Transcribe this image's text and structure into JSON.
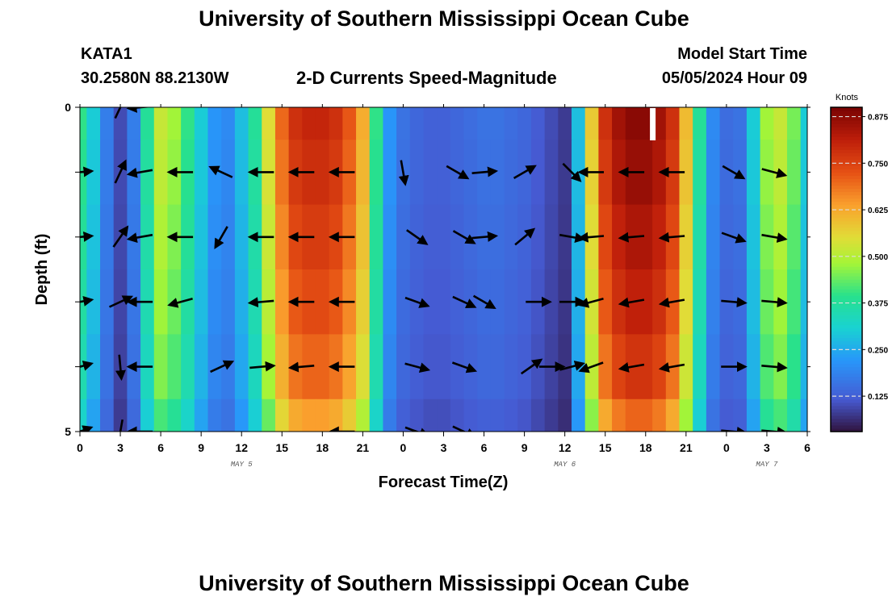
{
  "header": {
    "title_top": "University of Southern Mississippi Ocean Cube",
    "title_bottom": "University of Southern Mississippi Ocean Cube",
    "station": "KATA1",
    "coords": "30.2580N  88.2130W",
    "subtitle": "2-D Currents Speed-Magnitude",
    "model_start_label": "Model Start Time",
    "model_start_value": "05/05/2024 Hour 09"
  },
  "chart_data": {
    "type": "heatmap",
    "title": "2-D Currents Speed-Magnitude",
    "xlabel": "Forecast Time(Z)",
    "ylabel": "Depth (ft)",
    "x_ticks": [
      "0",
      "3",
      "6",
      "9",
      "12",
      "15",
      "18",
      "21",
      "0",
      "3",
      "6",
      "9",
      "12",
      "15",
      "18",
      "21",
      "0",
      "3",
      "6"
    ],
    "x_range_hours": [
      0,
      54
    ],
    "date_labels": [
      {
        "label": "MAY 5",
        "hour": 12
      },
      {
        "label": "MAY 6",
        "hour": 36
      },
      {
        "label": "MAY 7",
        "hour": 51
      }
    ],
    "y_ticks": [
      "0",
      "5"
    ],
    "y_range": [
      0,
      5
    ],
    "colorbar": {
      "unit": "Knots",
      "min": 0.03,
      "max": 0.9,
      "ticks": [
        "0.125",
        "0.250",
        "0.375",
        "0.500",
        "0.625",
        "0.750",
        "0.875"
      ],
      "tick_values": [
        0.125,
        0.25,
        0.375,
        0.5,
        0.625,
        0.75,
        0.875
      ]
    },
    "speed_profile_hours": [
      0,
      1,
      2,
      3,
      4,
      5,
      6,
      7,
      8,
      9,
      10,
      11,
      12,
      13,
      14,
      15,
      16,
      17,
      18,
      19,
      20,
      21,
      22,
      23,
      24,
      25,
      26,
      27,
      28,
      29,
      30,
      31,
      32,
      33,
      34,
      35,
      36,
      37,
      38,
      39,
      40,
      41,
      42,
      43,
      44,
      45,
      46,
      47,
      48,
      49,
      50,
      51,
      52,
      53,
      54
    ],
    "speed_profile_knots": [
      0.4,
      0.3,
      0.18,
      0.1,
      0.18,
      0.38,
      0.52,
      0.48,
      0.4,
      0.3,
      0.22,
      0.2,
      0.28,
      0.38,
      0.55,
      0.7,
      0.78,
      0.8,
      0.8,
      0.78,
      0.72,
      0.62,
      0.4,
      0.22,
      0.16,
      0.14,
      0.13,
      0.13,
      0.14,
      0.15,
      0.16,
      0.16,
      0.15,
      0.14,
      0.12,
      0.1,
      0.08,
      0.28,
      0.58,
      0.78,
      0.85,
      0.88,
      0.88,
      0.85,
      0.78,
      0.6,
      0.38,
      0.2,
      0.15,
      0.16,
      0.3,
      0.48,
      0.52,
      0.45,
      0.3
    ],
    "depth_rows_ft": [
      0,
      1,
      2,
      3,
      4,
      5
    ],
    "depth_speed_factor": [
      1.0,
      0.98,
      0.95,
      0.92,
      0.88,
      0.8
    ],
    "vectors": [
      {
        "hour": 0,
        "depth": 1,
        "dir": 5
      },
      {
        "hour": 0,
        "depth": 2,
        "dir": 5
      },
      {
        "hour": 0,
        "depth": 3,
        "dir": 10
      },
      {
        "hour": 0,
        "depth": 4,
        "dir": 15
      },
      {
        "hour": 0,
        "depth": 5,
        "dir": 20
      },
      {
        "hour": 3,
        "depth": 0,
        "dir": 65
      },
      {
        "hour": 3,
        "depth": 1,
        "dir": 65
      },
      {
        "hour": 3,
        "depth": 2,
        "dir": 55
      },
      {
        "hour": 3,
        "depth": 3,
        "dir": 25
      },
      {
        "hour": 3,
        "depth": 4,
        "dir": -85
      },
      {
        "hour": 3,
        "depth": 5,
        "dir": -100
      },
      {
        "hour": 4.5,
        "depth": 0,
        "dir": 185
      },
      {
        "hour": 4.5,
        "depth": 1,
        "dir": 190
      },
      {
        "hour": 4.5,
        "depth": 2,
        "dir": 190
      },
      {
        "hour": 4.5,
        "depth": 3,
        "dir": 180
      },
      {
        "hour": 4.5,
        "depth": 4,
        "dir": 180
      },
      {
        "hour": 4.5,
        "depth": 5,
        "dir": 180
      },
      {
        "hour": 7.5,
        "depth": 1,
        "dir": 180
      },
      {
        "hour": 7.5,
        "depth": 2,
        "dir": 180
      },
      {
        "hour": 7.5,
        "depth": 3,
        "dir": 195
      },
      {
        "hour": 10.5,
        "depth": 1,
        "dir": 155
      },
      {
        "hour": 10.5,
        "depth": 2,
        "dir": 240
      },
      {
        "hour": 10.5,
        "depth": 4,
        "dir": 25
      },
      {
        "hour": 13.5,
        "depth": 1,
        "dir": 180
      },
      {
        "hour": 13.5,
        "depth": 2,
        "dir": 180
      },
      {
        "hour": 13.5,
        "depth": 3,
        "dir": 185
      },
      {
        "hour": 13.5,
        "depth": 4,
        "dir": 5
      },
      {
        "hour": 16.5,
        "depth": 1,
        "dir": 180
      },
      {
        "hour": 16.5,
        "depth": 2,
        "dir": 180
      },
      {
        "hour": 16.5,
        "depth": 3,
        "dir": 180
      },
      {
        "hour": 16.5,
        "depth": 4,
        "dir": 185
      },
      {
        "hour": 19.5,
        "depth": 1,
        "dir": 180
      },
      {
        "hour": 19.5,
        "depth": 2,
        "dir": 180
      },
      {
        "hour": 19.5,
        "depth": 3,
        "dir": 180
      },
      {
        "hour": 19.5,
        "depth": 4,
        "dir": 180
      },
      {
        "hour": 19.5,
        "depth": 5,
        "dir": 180
      },
      {
        "hour": 24,
        "depth": 1,
        "dir": -80
      },
      {
        "hour": 25,
        "depth": 2,
        "dir": -35
      },
      {
        "hour": 25,
        "depth": 3,
        "dir": -20
      },
      {
        "hour": 25,
        "depth": 4,
        "dir": -15
      },
      {
        "hour": 25,
        "depth": 5,
        "dir": -20
      },
      {
        "hour": 28,
        "depth": 1,
        "dir": -30
      },
      {
        "hour": 28.5,
        "depth": 2,
        "dir": -30
      },
      {
        "hour": 28.5,
        "depth": 3,
        "dir": -25
      },
      {
        "hour": 28.5,
        "depth": 4,
        "dir": -20
      },
      {
        "hour": 28.5,
        "depth": 5,
        "dir": -25
      },
      {
        "hour": 30,
        "depth": 1,
        "dir": 5
      },
      {
        "hour": 30,
        "depth": 2,
        "dir": 5
      },
      {
        "hour": 30,
        "depth": 3,
        "dir": -30
      },
      {
        "hour": 33,
        "depth": 1,
        "dir": 30
      },
      {
        "hour": 33,
        "depth": 2,
        "dir": 40
      },
      {
        "hour": 33.5,
        "depth": 4,
        "dir": 35
      },
      {
        "hour": 34,
        "depth": 3,
        "dir": 0
      },
      {
        "hour": 35,
        "depth": 4,
        "dir": 0
      },
      {
        "hour": 36.5,
        "depth": 1,
        "dir": -45
      },
      {
        "hour": 36.5,
        "depth": 2,
        "dir": -10
      },
      {
        "hour": 36.5,
        "depth": 3,
        "dir": 0
      },
      {
        "hour": 36.5,
        "depth": 4,
        "dir": 15
      },
      {
        "hour": 38,
        "depth": 1,
        "dir": 180
      },
      {
        "hour": 38,
        "depth": 2,
        "dir": 185
      },
      {
        "hour": 38,
        "depth": 3,
        "dir": 195
      },
      {
        "hour": 38,
        "depth": 4,
        "dir": 200
      },
      {
        "hour": 41,
        "depth": 1,
        "dir": 180
      },
      {
        "hour": 41,
        "depth": 2,
        "dir": 185
      },
      {
        "hour": 41,
        "depth": 3,
        "dir": 190
      },
      {
        "hour": 41,
        "depth": 4,
        "dir": 190
      },
      {
        "hour": 44,
        "depth": 1,
        "dir": 180
      },
      {
        "hour": 44,
        "depth": 2,
        "dir": 185
      },
      {
        "hour": 44,
        "depth": 3,
        "dir": 190
      },
      {
        "hour": 44,
        "depth": 4,
        "dir": 190
      },
      {
        "hour": 48.5,
        "depth": 1,
        "dir": -30
      },
      {
        "hour": 48.5,
        "depth": 2,
        "dir": -20
      },
      {
        "hour": 48.5,
        "depth": 3,
        "dir": -5
      },
      {
        "hour": 48.5,
        "depth": 4,
        "dir": 0
      },
      {
        "hour": 48.5,
        "depth": 5,
        "dir": -5
      },
      {
        "hour": 51.5,
        "depth": 1,
        "dir": -15
      },
      {
        "hour": 51.5,
        "depth": 2,
        "dir": -10
      },
      {
        "hour": 51.5,
        "depth": 3,
        "dir": -5
      },
      {
        "hour": 51.5,
        "depth": 4,
        "dir": -5
      },
      {
        "hour": 51.5,
        "depth": 5,
        "dir": -5
      }
    ],
    "marker_hour": 42.5
  }
}
